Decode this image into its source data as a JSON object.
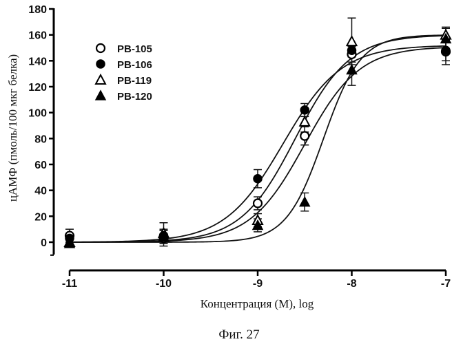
{
  "chart_data": {
    "type": "scatter",
    "xlabel": "Концентрация (М), log",
    "ylabel": "цАМФ (пмоль/100 мкг белка)",
    "caption": "Фиг. 27",
    "xlim": [
      -11,
      -7
    ],
    "ylim": [
      -10,
      180
    ],
    "x_ticks": [
      -11,
      -10,
      -9,
      -8,
      -7
    ],
    "x_tick_labels": [
      "-11",
      "-10",
      "-9",
      "-8",
      "-7"
    ],
    "y_ticks": [
      0,
      20,
      40,
      60,
      80,
      100,
      120,
      140,
      160,
      180
    ],
    "y_tick_labels": [
      "0",
      "20",
      "40",
      "60",
      "80",
      "100",
      "120",
      "140",
      "160",
      "180"
    ],
    "legend_position": "top-left",
    "series": [
      {
        "name": "PB-105",
        "marker": "circle-open",
        "x": [
          -11,
          -10,
          -9,
          -8.5,
          -8,
          -7
        ],
        "y": [
          5,
          3,
          30,
          82,
          145,
          147
        ],
        "err": [
          5,
          6,
          5,
          7,
          6,
          10
        ],
        "curve": {
          "bottom": 0,
          "top": 151,
          "logEC50": -8.5,
          "hill": 1.5
        }
      },
      {
        "name": "PB-106",
        "marker": "circle-filled",
        "x": [
          -11,
          -10,
          -9,
          -8.5,
          -8,
          -7
        ],
        "y": [
          3,
          5,
          49,
          102,
          148,
          148
        ],
        "err": [
          3,
          5,
          7,
          5,
          5,
          8
        ],
        "curve": {
          "bottom": 0,
          "top": 152,
          "logEC50": -8.73,
          "hill": 1.4
        }
      },
      {
        "name": "PB-119",
        "marker": "triangle-open",
        "x": [
          -11,
          -10,
          -9,
          -8.5,
          -8,
          -7
        ],
        "y": [
          0,
          7,
          17,
          93,
          155,
          160
        ],
        "err": [
          3,
          8,
          5,
          8,
          18,
          6
        ],
        "curve": {
          "bottom": 0,
          "top": 160,
          "logEC50": -8.6,
          "hill": 1.5
        }
      },
      {
        "name": "PB-120",
        "marker": "triangle-filled",
        "x": [
          -11,
          -10,
          -9,
          -8.5,
          -8,
          -7
        ],
        "y": [
          -1,
          4,
          13,
          31,
          133,
          157
        ],
        "err": [
          3,
          5,
          5,
          7,
          12,
          8
        ],
        "curve": {
          "bottom": 0,
          "top": 160,
          "logEC50": -8.3,
          "hill": 2.2
        }
      }
    ]
  }
}
